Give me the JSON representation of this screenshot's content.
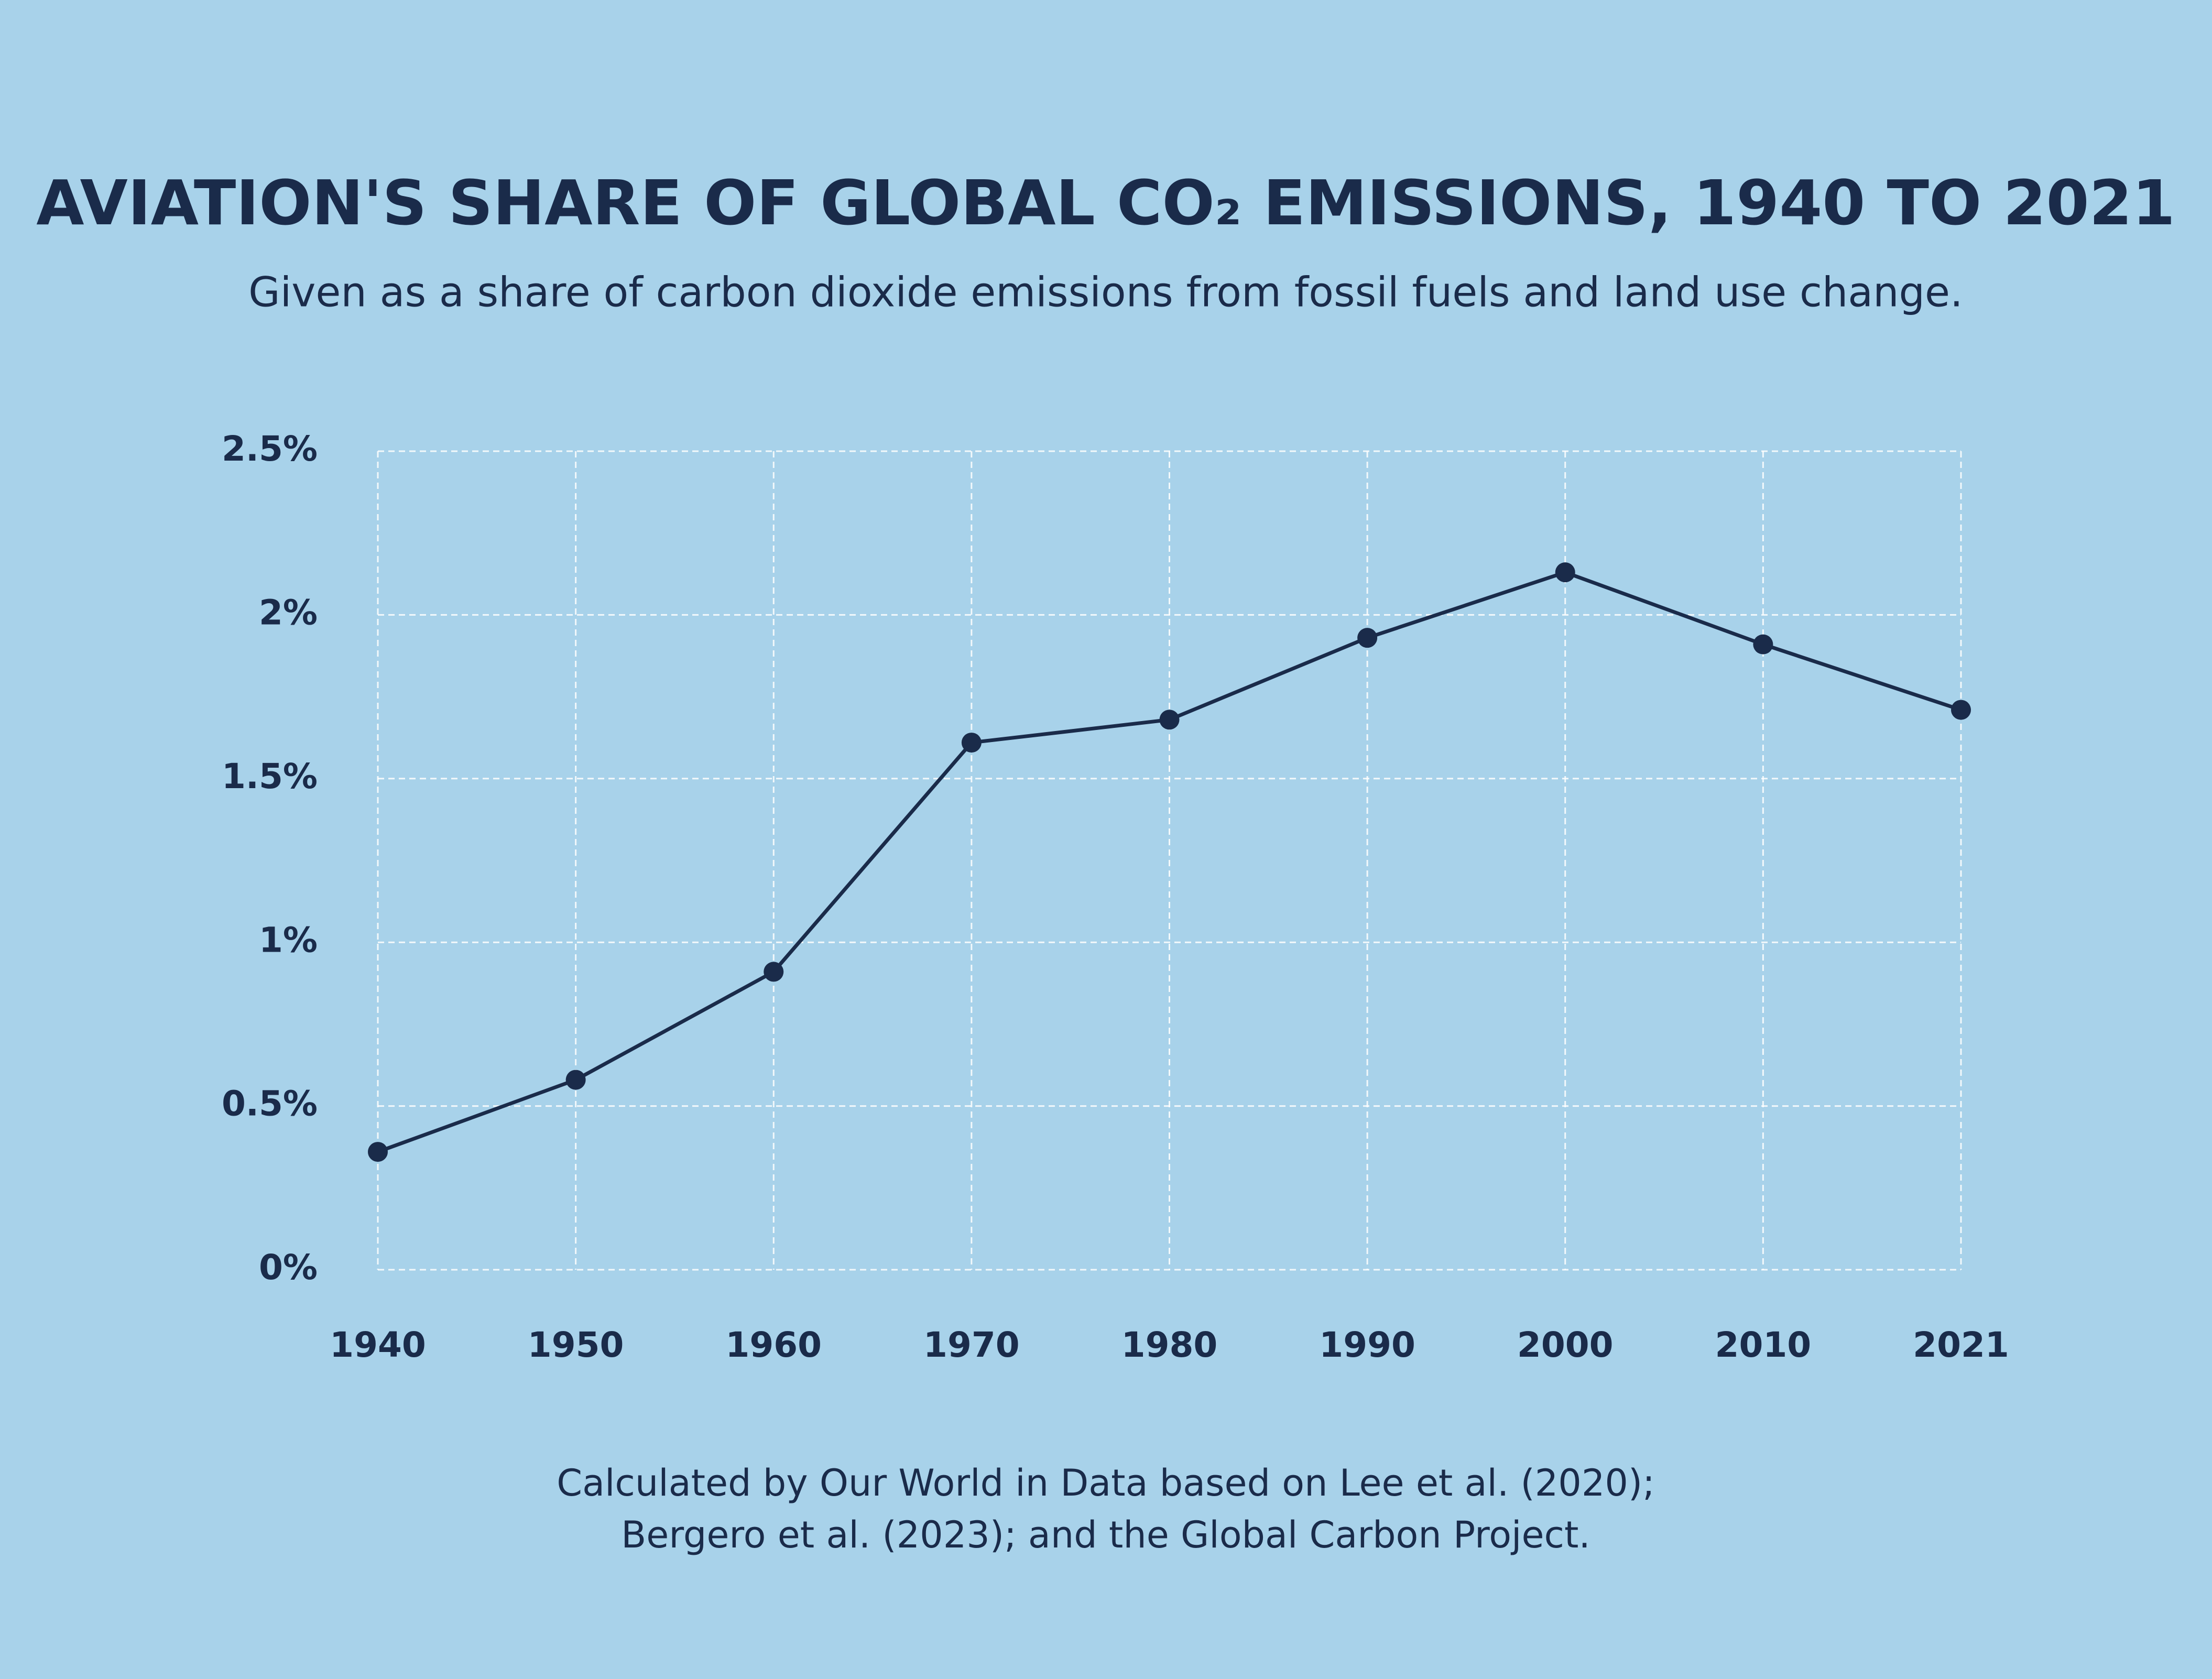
{
  "chart_data": {
    "type": "line",
    "title": "AVIATION'S SHARE OF GLOBAL CO₂ EMISSIONS, 1940 TO 2021",
    "subtitle": "Given as a share of carbon dioxide emissions from fossil fuels and land use change.",
    "categories": [
      "1940",
      "1950",
      "1960",
      "1970",
      "1980",
      "1990",
      "2000",
      "2010",
      "2021"
    ],
    "values": [
      0.36,
      0.58,
      0.91,
      1.61,
      1.68,
      1.93,
      2.13,
      1.91,
      1.71
    ],
    "color": "#1a2b4a",
    "ylim": [
      0,
      2.5
    ],
    "yticks": [
      {
        "value": 0,
        "label": "0%"
      },
      {
        "value": 0.5,
        "label": "0.5%"
      },
      {
        "value": 1,
        "label": "1%"
      },
      {
        "value": 1.5,
        "label": "1.5%"
      },
      {
        "value": 2,
        "label": "2%"
      },
      {
        "value": 2.5,
        "label": "2.5%"
      }
    ],
    "grid": true,
    "source": [
      "Calculated by Our World in Data based on Lee et al. (2020);",
      "Bergero et al. (2023); and the Global Carbon Project."
    ]
  }
}
